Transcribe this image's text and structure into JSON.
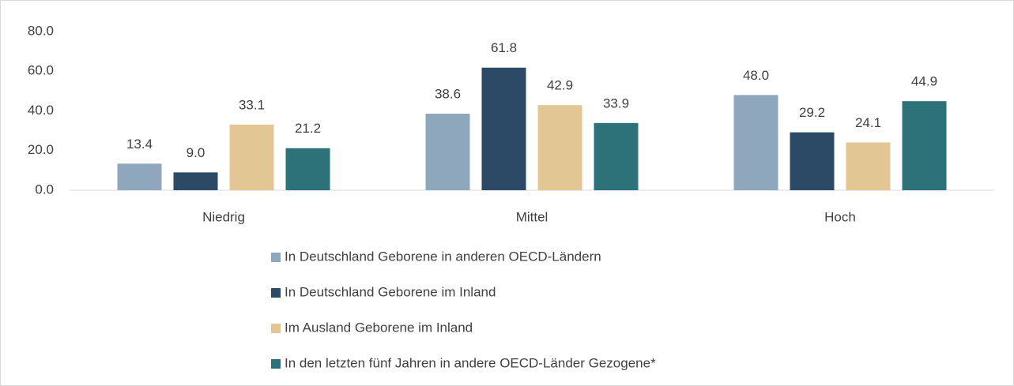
{
  "chart_data": {
    "type": "bar",
    "categories": [
      "Niedrig",
      "Mittel",
      "Hoch"
    ],
    "series": [
      {
        "name": "In Deutschland Geborene in anderen OECD-Ländern",
        "color": "#8fa7bc",
        "values": [
          13.4,
          38.6,
          48.0
        ],
        "value_labels": [
          "13.4",
          "38.6",
          "48.0"
        ]
      },
      {
        "name": "In Deutschland Geborene im Inland",
        "color": "#2c4966",
        "values": [
          9.0,
          61.8,
          29.2
        ],
        "value_labels": [
          "9.0",
          "61.8",
          "29.2"
        ]
      },
      {
        "name": "Im Ausland Geborene im Inland",
        "color": "#e2c794",
        "values": [
          33.1,
          42.9,
          24.1
        ],
        "value_labels": [
          "33.1",
          "42.9",
          "24.1"
        ]
      },
      {
        "name": "In den letzten fünf Jahren in andere OECD-Länder Gezogene*",
        "color": "#2e7279",
        "values": [
          21.2,
          33.9,
          44.9
        ],
        "value_labels": [
          "21.2",
          "33.9",
          "44.9"
        ]
      }
    ],
    "ylim": [
      0,
      80
    ],
    "yticks": [
      {
        "value": 0,
        "label": "0.0"
      },
      {
        "value": 20,
        "label": "20.0"
      },
      {
        "value": 40,
        "label": "40.0"
      },
      {
        "value": 60,
        "label": "60.0"
      },
      {
        "value": 80,
        "label": "80.0"
      }
    ],
    "grid": false,
    "legend": "bottom"
  }
}
